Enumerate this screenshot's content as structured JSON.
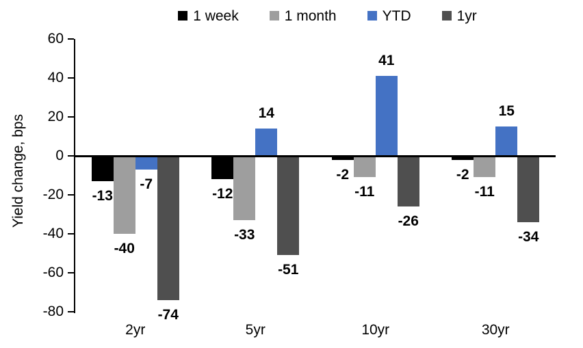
{
  "chart_data": {
    "type": "bar",
    "title": "",
    "xlabel": "",
    "ylabel": "Yield change, bps",
    "categories": [
      "2yr",
      "5yr",
      "10yr",
      "30yr"
    ],
    "series": [
      {
        "name": "1 week",
        "color": "#000000",
        "values": [
          -13,
          -12,
          -2,
          -2
        ]
      },
      {
        "name": "1 month",
        "color": "#9E9E9E",
        "values": [
          -40,
          -33,
          -11,
          -11
        ]
      },
      {
        "name": "YTD",
        "color": "#4472C4",
        "values": [
          -7,
          14,
          41,
          15
        ]
      },
      {
        "name": "1yr",
        "color": "#4F4F4F",
        "values": [
          -74,
          -51,
          -26,
          -34
        ]
      }
    ],
    "ylim": [
      -80,
      60
    ],
    "yticks": [
      60,
      40,
      20,
      0,
      -20,
      -40,
      -60,
      -80
    ],
    "grid": false,
    "legend_position": "top",
    "data_labels": true,
    "axis_color": "#000000",
    "background": "#FFFFFF"
  }
}
